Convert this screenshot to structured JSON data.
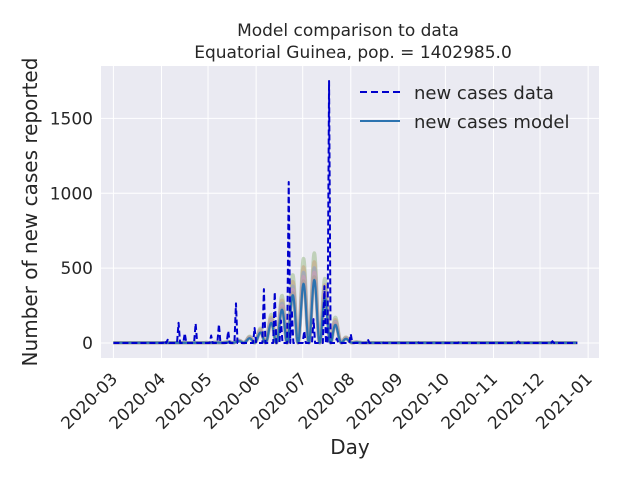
{
  "chart_data": {
    "type": "line",
    "title": "Model comparison to data",
    "subtitle": "Equatorial Guinea, pop. = 1402985.0",
    "xlabel": "Day",
    "ylabel": "Number of new cases reported",
    "x_tick_labels": [
      "2020-03",
      "2020-04",
      "2020-05",
      "2020-06",
      "2020-07",
      "2020-08",
      "2020-09",
      "2020-10",
      "2020-11",
      "2020-12",
      "2021-01"
    ],
    "y_ticks": [
      0,
      500,
      1000,
      1500
    ],
    "xlim": [
      "2020-02-22",
      "2021-01-08"
    ],
    "ylim": [
      -100,
      1850
    ],
    "grid": true,
    "legend_position": "top-right",
    "colors": {
      "background": "#eaeaf2",
      "grid": "#ffffff",
      "data": "#0000cc",
      "model": "#2c73b0",
      "ensemble": [
        "#9bb98a",
        "#c9a27e",
        "#8da0cb",
        "#d49bb5",
        "#a89f91"
      ]
    },
    "series": [
      {
        "name": "new cases data",
        "style": "dashed",
        "points": [
          [
            "2020-03-01",
            0
          ],
          [
            "2020-04-02",
            0
          ],
          [
            "2020-04-03",
            18
          ],
          [
            "2020-04-04",
            0
          ],
          [
            "2020-04-05",
            22
          ],
          [
            "2020-04-06",
            0
          ],
          [
            "2020-04-11",
            0
          ],
          [
            "2020-04-12",
            135
          ],
          [
            "2020-04-13",
            0
          ],
          [
            "2020-04-15",
            0
          ],
          [
            "2020-04-16",
            65
          ],
          [
            "2020-04-17",
            0
          ],
          [
            "2020-04-22",
            0
          ],
          [
            "2020-04-23",
            130
          ],
          [
            "2020-04-24",
            0
          ],
          [
            "2020-05-02",
            0
          ],
          [
            "2020-05-03",
            50
          ],
          [
            "2020-05-04",
            0
          ],
          [
            "2020-05-07",
            0
          ],
          [
            "2020-05-08",
            125
          ],
          [
            "2020-05-09",
            0
          ],
          [
            "2020-05-13",
            0
          ],
          [
            "2020-05-14",
            80
          ],
          [
            "2020-05-15",
            0
          ],
          [
            "2020-05-18",
            0
          ],
          [
            "2020-05-19",
            265
          ],
          [
            "2020-05-20",
            0
          ],
          [
            "2020-05-30",
            0
          ],
          [
            "2020-05-31",
            100
          ],
          [
            "2020-06-01",
            0
          ],
          [
            "2020-06-05",
            0
          ],
          [
            "2020-06-06",
            360
          ],
          [
            "2020-06-07",
            0
          ],
          [
            "2020-06-12",
            0
          ],
          [
            "2020-06-13",
            340
          ],
          [
            "2020-06-14",
            0
          ],
          [
            "2020-06-16",
            0
          ],
          [
            "2020-06-17",
            150
          ],
          [
            "2020-06-18",
            0
          ],
          [
            "2020-06-21",
            0
          ],
          [
            "2020-06-22",
            1075
          ],
          [
            "2020-06-23",
            0
          ],
          [
            "2020-06-24",
            220
          ],
          [
            "2020-06-25",
            0
          ],
          [
            "2020-07-01",
            0
          ],
          [
            "2020-07-02",
            80
          ],
          [
            "2020-07-03",
            0
          ],
          [
            "2020-07-07",
            0
          ],
          [
            "2020-07-08",
            160
          ],
          [
            "2020-07-09",
            0
          ],
          [
            "2020-07-14",
            0
          ],
          [
            "2020-07-15",
            380
          ],
          [
            "2020-07-16",
            0
          ],
          [
            "2020-07-17",
            0
          ],
          [
            "2020-07-18",
            1750
          ],
          [
            "2020-07-19",
            0
          ],
          [
            "2020-07-22",
            0
          ],
          [
            "2020-07-23",
            30
          ],
          [
            "2020-07-24",
            0
          ],
          [
            "2020-07-31",
            0
          ],
          [
            "2020-08-01",
            60
          ],
          [
            "2020-08-02",
            0
          ],
          [
            "2020-08-11",
            0
          ],
          [
            "2020-08-12",
            25
          ],
          [
            "2020-08-13",
            0
          ],
          [
            "2020-08-20",
            0
          ],
          [
            "2020-08-21",
            10
          ],
          [
            "2020-08-22",
            0
          ],
          [
            "2020-09-12",
            0
          ],
          [
            "2020-09-13",
            8
          ],
          [
            "2020-09-14",
            0
          ],
          [
            "2020-10-09",
            0
          ],
          [
            "2020-10-10",
            6
          ],
          [
            "2020-10-11",
            0
          ],
          [
            "2020-11-16",
            0
          ],
          [
            "2020-11-17",
            10
          ],
          [
            "2020-11-18",
            0
          ],
          [
            "2020-12-08",
            0
          ],
          [
            "2020-12-09",
            12
          ],
          [
            "2020-12-10",
            0
          ],
          [
            "2020-12-25",
            0
          ]
        ]
      },
      {
        "name": "new cases model",
        "style": "solid",
        "wave": {
          "start": "2020-03-01",
          "end": "2020-12-25",
          "period_days": 7,
          "peak_date": "2020-07-08",
          "peak_value": 420,
          "rise_sd_days": 18,
          "fall_sd_days": 9,
          "floor": 2
        }
      }
    ],
    "ensemble_peak_values": [
      600,
      540,
      500,
      470,
      440
    ]
  },
  "legend": {
    "data_label": "new cases data",
    "model_label": "new cases model"
  }
}
